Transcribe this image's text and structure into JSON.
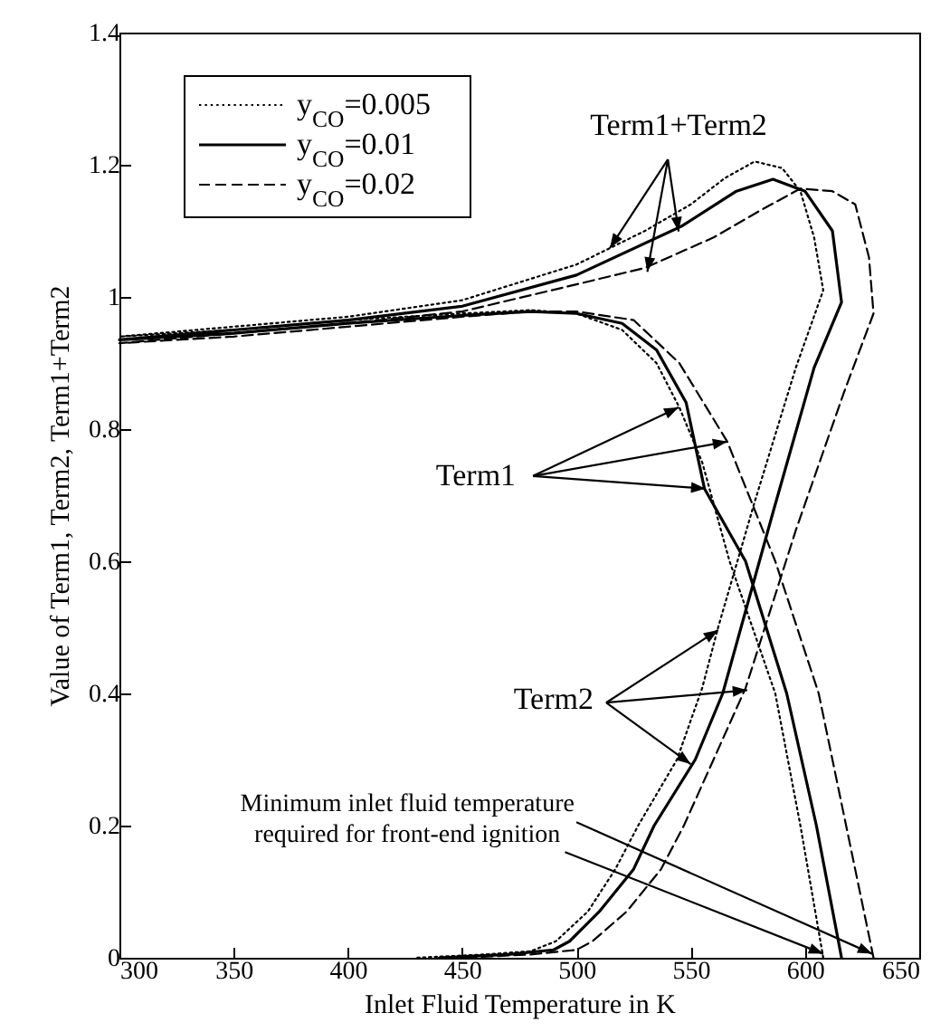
{
  "chart_data": {
    "type": "line",
    "xlabel": "Inlet Fluid Temperature in K",
    "ylabel": "Value of Term1, Term2, Term1+Term2",
    "xlim": [
      300,
      650
    ],
    "xticks": [
      300,
      350,
      400,
      450,
      500,
      550,
      600,
      650
    ],
    "ylim": [
      0,
      1.4
    ],
    "yticks": [
      0,
      0.2,
      0.4,
      0.6,
      0.8,
      1,
      1.2,
      1.4
    ],
    "grid": false,
    "legend": "top left",
    "marker": "none",
    "annotations": [
      {
        "text": "Term1+Term2",
        "x": 514.6,
        "y": 1.074
      },
      {
        "text": "Term1",
        "x": 544.7,
        "y": 0.833
      },
      {
        "text": "Term2",
        "x": 562,
        "y": 0.496
      },
      {
        "text": "Minimum inlet fluid temperature required for front-end ignition",
        "x": 629.4,
        "y": 0.006
      }
    ],
    "series": [
      {
        "name": "y$_{CO}$=0.005",
        "color": "#000000",
        "line_style": "dotted",
        "x": [
          608,
          598,
          587,
          577,
          567,
          555,
          545,
          535,
          520,
          500,
          480,
          450,
          400,
          350,
          300,
          350,
          400,
          450,
          500,
          530,
          550,
          565,
          578,
          590,
          598,
          604,
          608,
          596,
          578,
          562,
          555,
          544,
          527,
          517,
          505,
          491,
          480,
          460,
          430
        ],
        "values": [
          0,
          0.2,
          0.4,
          0.5,
          0.6,
          0.75,
          0.833,
          0.9,
          0.95,
          0.975,
          0.98,
          0.975,
          0.965,
          0.95,
          0.94,
          0.955,
          0.97,
          0.995,
          1.049,
          1.1,
          1.14,
          1.18,
          1.205,
          1.195,
          1.16,
          1.09,
          1.01,
          0.893,
          0.69,
          0.5,
          0.408,
          0.3,
          0.2,
          0.134,
          0.07,
          0.025,
          0.01,
          0.005,
          0
        ]
      },
      {
        "name": "y$_{CO}$=0.01",
        "color": "#000000",
        "line_style": "solid",
        "x": [
          616,
          605,
          592,
          574,
          556,
          548,
          535,
          520,
          500,
          480,
          450,
          400,
          350,
          300,
          350,
          400,
          450,
          500,
          546,
          570,
          586,
          600,
          612,
          616,
          604,
          586,
          564,
          552,
          534,
          525,
          510,
          497,
          490,
          470,
          440
        ],
        "values": [
          0,
          0.2,
          0.4,
          0.6,
          0.71,
          0.84,
          0.92,
          0.96,
          0.975,
          0.978,
          0.972,
          0.96,
          0.945,
          0.935,
          0.95,
          0.965,
          0.986,
          1.033,
          1.107,
          1.16,
          1.178,
          1.16,
          1.1,
          0.992,
          0.893,
          0.674,
          0.4,
          0.3,
          0.2,
          0.134,
          0.07,
          0.025,
          0.012,
          0.005,
          0
        ]
      },
      {
        "name": "y$_{CO}$=0.02",
        "color": "#000000",
        "line_style": "dashed",
        "x": [
          630,
          618,
          606,
          587,
          566,
          545,
          525,
          500,
          480,
          450,
          400,
          350,
          300,
          350,
          400,
          450,
          500,
          530,
          560,
          580,
          598,
          612,
          622,
          628,
          630,
          617,
          596,
          574,
          560,
          547,
          537,
          522,
          507,
          500,
          480,
          450
        ],
        "values": [
          0,
          0.2,
          0.4,
          0.6,
          0.781,
          0.9,
          0.965,
          0.978,
          0.978,
          0.97,
          0.955,
          0.94,
          0.93,
          0.945,
          0.96,
          0.978,
          1.019,
          1.044,
          1.09,
          1.13,
          1.164,
          1.16,
          1.14,
          1.06,
          0.975,
          0.855,
          0.647,
          0.408,
          0.3,
          0.2,
          0.134,
          0.07,
          0.025,
          0.012,
          0.005,
          0
        ]
      }
    ]
  }
}
